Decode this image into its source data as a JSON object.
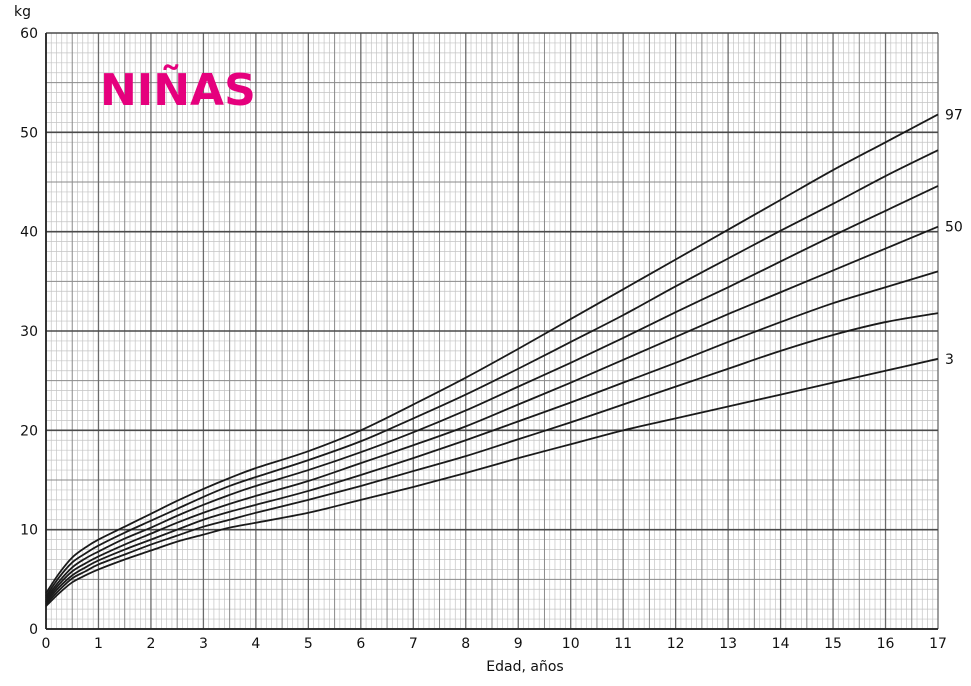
{
  "chart_data": {
    "type": "line",
    "title": "NIÑAS",
    "title_color": "#e5007d",
    "xlabel": "Edad, años",
    "ylabel": "kg",
    "xlim": [
      0,
      17
    ],
    "ylim": [
      0,
      60
    ],
    "x_ticks": [
      "0",
      "1",
      "2",
      "3",
      "4",
      "5",
      "6",
      "7",
      "8",
      "9",
      "10",
      "11",
      "12",
      "13",
      "14",
      "15",
      "16",
      "17"
    ],
    "y_ticks": [
      "0",
      "10",
      "20",
      "30",
      "40",
      "50",
      "60"
    ],
    "grid": true,
    "line_color": "#1a1a1a",
    "x": [
      0,
      0.25,
      0.5,
      0.75,
      1,
      1.5,
      2,
      2.5,
      3,
      3.5,
      4,
      5,
      6,
      7,
      8,
      9,
      10,
      11,
      12,
      13,
      14,
      15,
      16,
      17
    ],
    "series": [
      {
        "name": "97",
        "values": [
          3.6,
          5.6,
          7.2,
          8.2,
          9.0,
          10.3,
          11.6,
          12.9,
          14.1,
          15.2,
          16.2,
          17.9,
          20.0,
          22.6,
          25.3,
          28.2,
          31.2,
          34.2,
          37.2,
          40.2,
          43.2,
          46.2,
          49.0,
          51.8
        ]
      },
      {
        "name": "",
        "values": [
          3.3,
          5.2,
          6.7,
          7.6,
          8.4,
          9.7,
          10.9,
          12.1,
          13.3,
          14.4,
          15.3,
          17.0,
          18.9,
          21.2,
          23.6,
          26.2,
          28.9,
          31.6,
          34.5,
          37.3,
          40.1,
          42.8,
          45.6,
          48.2
        ]
      },
      {
        "name": "",
        "values": [
          3.1,
          4.8,
          6.2,
          7.1,
          7.8,
          9.1,
          10.2,
          11.4,
          12.5,
          13.5,
          14.4,
          16.0,
          17.8,
          19.8,
          22.0,
          24.4,
          26.8,
          29.3,
          31.9,
          34.4,
          37.0,
          39.6,
          42.1,
          44.6
        ]
      },
      {
        "name": "50",
        "values": [
          2.9,
          4.5,
          5.8,
          6.6,
          7.3,
          8.5,
          9.6,
          10.7,
          11.7,
          12.6,
          13.4,
          14.9,
          16.7,
          18.5,
          20.4,
          22.6,
          24.8,
          27.1,
          29.4,
          31.7,
          33.9,
          36.1,
          38.3,
          40.5
        ]
      },
      {
        "name": "",
        "values": [
          2.7,
          4.2,
          5.4,
          6.2,
          6.9,
          8.0,
          9.0,
          10.0,
          11.0,
          11.8,
          12.5,
          13.9,
          15.5,
          17.2,
          19.0,
          20.9,
          22.8,
          24.8,
          26.8,
          28.9,
          30.9,
          32.8,
          34.4,
          36.0
        ]
      },
      {
        "name": "",
        "values": [
          2.5,
          3.9,
          5.1,
          5.8,
          6.5,
          7.5,
          8.5,
          9.4,
          10.3,
          11.0,
          11.7,
          13.0,
          14.4,
          15.9,
          17.4,
          19.1,
          20.8,
          22.6,
          24.4,
          26.2,
          28.0,
          29.6,
          30.9,
          31.8
        ]
      },
      {
        "name": "3",
        "values": [
          2.3,
          3.6,
          4.7,
          5.4,
          6.0,
          7.0,
          7.9,
          8.8,
          9.5,
          10.2,
          10.7,
          11.7,
          13.0,
          14.3,
          15.7,
          17.2,
          18.6,
          20.0,
          21.2,
          22.4,
          23.6,
          24.8,
          26.0,
          27.2
        ]
      }
    ]
  }
}
